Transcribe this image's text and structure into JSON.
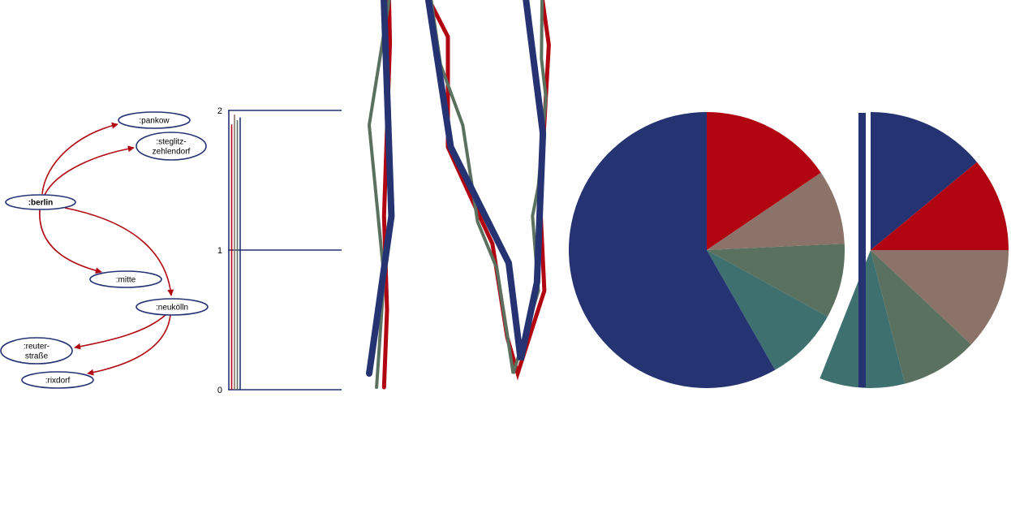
{
  "colors": {
    "navy": "#253373",
    "red": "#b10611",
    "taupe": "#8b736a",
    "sage": "#5b7160",
    "teal": "#3e7070"
  },
  "graph": {
    "nodes": [
      {
        "id": "berlin",
        "label": ":berlin",
        "bold": true
      },
      {
        "id": "pankow",
        "label": ":pankow"
      },
      {
        "id": "steglitz",
        "label": ":steglitz-\nzehlendorf"
      },
      {
        "id": "mitte",
        "label": ":mitte"
      },
      {
        "id": "neukolln",
        "label": ":neukölln"
      },
      {
        "id": "reuter",
        "label": ":reuter-\nstraße"
      },
      {
        "id": "rixdorf",
        "label": ":rixdorf"
      }
    ],
    "edges": [
      {
        "from": "berlin",
        "to": "pankow"
      },
      {
        "from": "berlin",
        "to": "steglitz"
      },
      {
        "from": "berlin",
        "to": "mitte"
      },
      {
        "from": "berlin",
        "to": "neukolln"
      },
      {
        "from": "neukolln",
        "to": "reuter"
      },
      {
        "from": "neukolln",
        "to": "rixdorf"
      }
    ]
  },
  "chart_data": [
    {
      "type": "bar",
      "yticks": [
        "0",
        "1",
        "2"
      ],
      "ylim": [
        0,
        2
      ],
      "series": [
        {
          "color": "navy",
          "values": [
            2.0
          ]
        },
        {
          "color": "red",
          "values": [
            1.9
          ]
        },
        {
          "color": "taupe",
          "values": [
            1.97
          ]
        },
        {
          "color": "sage",
          "values": [
            1.93
          ]
        },
        {
          "color": "navy",
          "values": [
            1.95
          ]
        }
      ]
    },
    {
      "type": "line",
      "series": [
        {
          "color": "red",
          "points": [
            [
              0.1,
              0.0
            ],
            [
              0.12,
              0.28
            ],
            [
              0.1,
              0.62
            ],
            [
              0.14,
              1.25
            ],
            [
              0.12,
              1.72
            ],
            [
              0.0,
              1.78
            ],
            [
              0.12,
              2.0
            ],
            [
              0.2,
              1.83
            ],
            [
              0.33,
              1.48
            ],
            [
              0.53,
              1.27
            ],
            [
              0.53,
              0.87
            ],
            [
              0.7,
              0.67
            ],
            [
              0.83,
              0.52
            ],
            [
              0.93,
              0.18
            ],
            [
              1.0,
              0.05
            ],
            [
              1.18,
              0.35
            ],
            [
              1.15,
              0.68
            ],
            [
              1.21,
              1.24
            ],
            [
              1.16,
              1.43
            ],
            [
              1.08,
              1.78
            ],
            [
              1.22,
              2.0
            ]
          ]
        },
        {
          "color": "sage",
          "points": [
            [
              0.05,
              0.0
            ],
            [
              0.1,
              0.4
            ],
            [
              0.0,
              0.95
            ],
            [
              0.14,
              1.42
            ],
            [
              0.05,
              1.67
            ],
            [
              0.03,
              2.0
            ],
            [
              0.17,
              1.89
            ],
            [
              0.37,
              1.58
            ],
            [
              0.48,
              1.17
            ],
            [
              0.63,
              0.95
            ],
            [
              0.73,
              0.6
            ],
            [
              0.86,
              0.43
            ],
            [
              0.97,
              0.05
            ],
            [
              1.14,
              0.35
            ],
            [
              1.1,
              0.62
            ],
            [
              1.14,
              0.73
            ],
            [
              1.19,
              1.05
            ],
            [
              1.16,
              1.19
            ],
            [
              1.17,
              1.72
            ],
            [
              1.2,
              1.86
            ]
          ]
        },
        {
          "color": "navy",
          "points": [
            [
              0.0,
              0.05
            ],
            [
              0.15,
              0.62
            ],
            [
              0.08,
              1.7
            ],
            [
              0.15,
              2.0
            ],
            [
              0.38,
              1.47
            ],
            [
              0.55,
              0.87
            ],
            [
              0.94,
              0.45
            ],
            [
              1.02,
              0.1
            ],
            [
              1.13,
              0.38
            ],
            [
              1.17,
              0.92
            ],
            [
              1.05,
              1.43
            ],
            [
              1.2,
              1.95
            ]
          ]
        }
      ]
    },
    {
      "type": "pie",
      "values": [
        60,
        16,
        9,
        9,
        9
      ],
      "colors": [
        "navy",
        "red",
        "taupe",
        "sage",
        "teal"
      ]
    },
    {
      "type": "pie",
      "values": [
        14,
        11,
        12,
        9,
        10,
        44
      ],
      "colors": [
        "navy",
        "red",
        "taupe",
        "sage",
        "teal",
        "white"
      ]
    }
  ]
}
